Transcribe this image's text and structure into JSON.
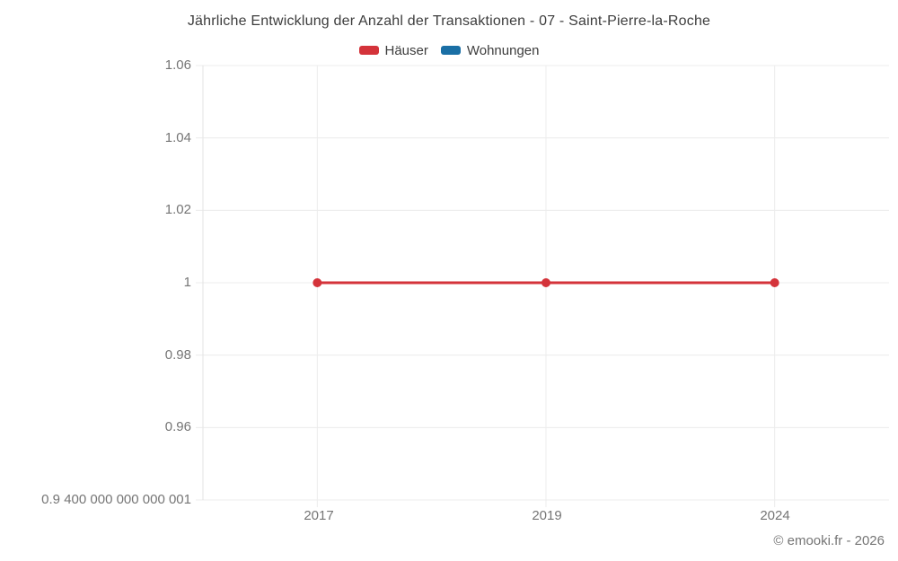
{
  "footer": {
    "credit": "© emooki.fr - 2026"
  },
  "colors": {
    "grid": "#ececec",
    "axis": "#e3e3e3",
    "tick_text": "#757575",
    "title_text": "#3d3d3d"
  },
  "chart_data": {
    "type": "line",
    "title": "Jährliche Entwicklung der Anzahl der Transaktionen - 07 - Saint-Pierre-la-Roche",
    "xlabel": "",
    "ylabel": "",
    "categories": [
      "2017",
      "2019",
      "2024"
    ],
    "series": [
      {
        "name": "Häuser",
        "color": "#d4333a",
        "values": [
          1,
          1,
          1
        ]
      },
      {
        "name": "Wohnungen",
        "color": "#1a6fa5",
        "values": [
          null,
          null,
          null
        ]
      }
    ],
    "ylim": [
      0.9400000000000001,
      1.06
    ],
    "ytick_values": [
      1.06,
      1.04,
      1.02,
      1,
      0.98,
      0.96,
      0.9400000000000001
    ],
    "ytick_labels": [
      "1.06",
      "1.04",
      "1.02",
      "1",
      "0.98",
      "0.96",
      "0.9 400 000 000 000 001"
    ],
    "grid": true,
    "legend_position": "top",
    "marker_radius": 5,
    "line_width": 3
  }
}
